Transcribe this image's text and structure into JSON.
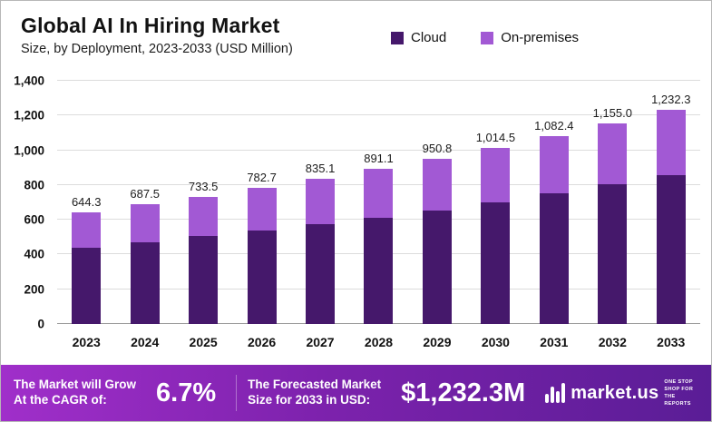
{
  "header": {
    "title": "Global AI In Hiring Market",
    "subtitle": "Size, by Deployment, 2023-2033 (USD Million)"
  },
  "legend": {
    "items": [
      {
        "label": "Cloud",
        "color": "#45186b"
      },
      {
        "label": "On-premises",
        "color": "#a259d4"
      }
    ]
  },
  "chart_data": {
    "type": "bar",
    "stacked": true,
    "title": "Global AI In Hiring Market Size, by Deployment, 2023-2033 (USD Million)",
    "categories": [
      "2023",
      "2024",
      "2025",
      "2026",
      "2027",
      "2028",
      "2029",
      "2030",
      "2031",
      "2032",
      "2033"
    ],
    "series": [
      {
        "name": "Cloud",
        "color": "#45186b",
        "values": [
          440,
          470,
          505,
          540,
          575,
          610,
          655,
          700,
          750,
          805,
          855
        ]
      },
      {
        "name": "On-premises",
        "color": "#a259d4",
        "values": [
          204.3,
          217.5,
          228.5,
          242.7,
          260.1,
          281.1,
          295.8,
          314.5,
          332.4,
          350.0,
          377.3
        ]
      }
    ],
    "totals": [
      644.3,
      687.5,
      733.5,
      782.7,
      835.1,
      891.1,
      950.8,
      1014.5,
      1082.4,
      1155.0,
      1232.3
    ],
    "total_labels": [
      "644.3",
      "687.5",
      "733.5",
      "782.7",
      "835.1",
      "891.1",
      "950.8",
      "1,014.5",
      "1,082.4",
      "1,155.0",
      "1,232.3"
    ],
    "xlabel": "",
    "ylabel": "",
    "ylim": [
      0,
      1400
    ],
    "yticks": [
      0,
      200,
      400,
      600,
      800,
      1000,
      1200,
      1400
    ],
    "grid": true,
    "legend_position": "top"
  },
  "banner": {
    "cagr_line1": "The Market will Grow",
    "cagr_line2": "At the CAGR of:",
    "cagr_value": "6.7%",
    "forecast_line1": "The Forecasted Market",
    "forecast_line2": "Size for 2033 in USD:",
    "forecast_value": "$1,232.3M",
    "logo_name": "market.us",
    "logo_tagline": "One Stop Shop For The Reports"
  }
}
